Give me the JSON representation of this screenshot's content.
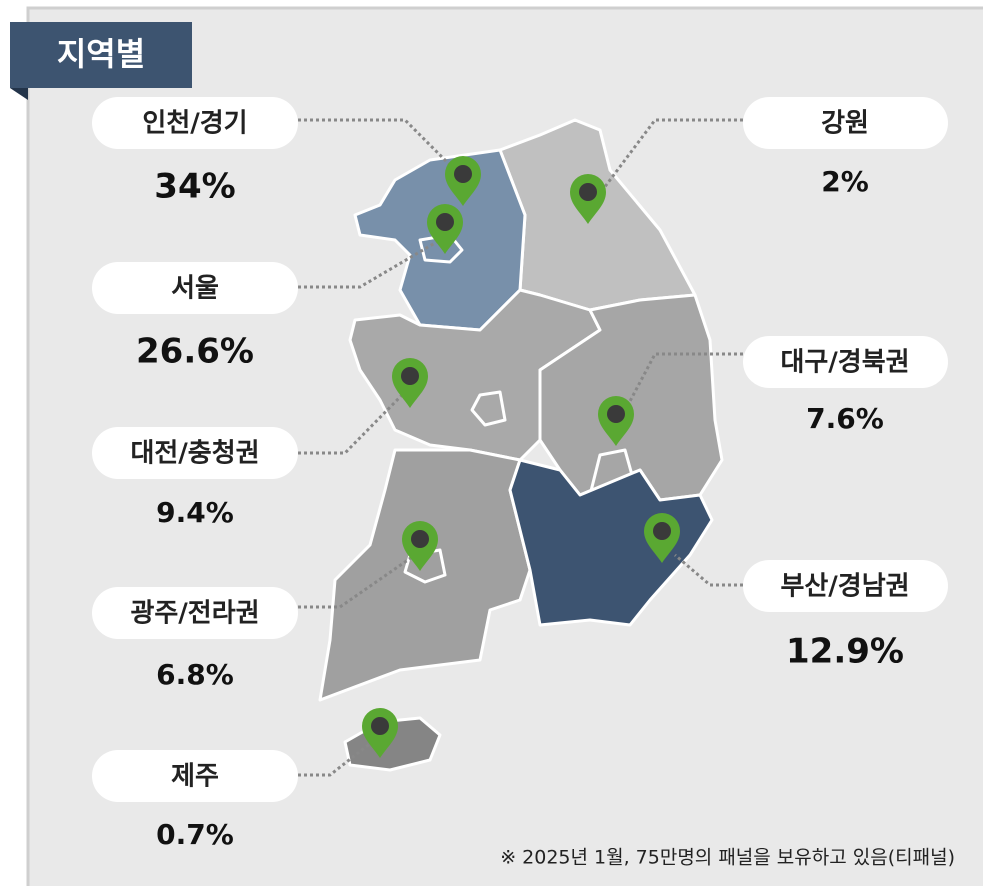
{
  "header": {
    "title": "지역별"
  },
  "regions": [
    {
      "name": "인천/경기",
      "value": "34%"
    },
    {
      "name": "서울",
      "value": "26.6%"
    },
    {
      "name": "대전/충청권",
      "value": "9.4%"
    },
    {
      "name": "광주/전라권",
      "value": "6.8%"
    },
    {
      "name": "제주",
      "value": "0.7%"
    },
    {
      "name": "강원",
      "value": "2%"
    },
    {
      "name": "대구/경북권",
      "value": "7.6%"
    },
    {
      "name": "부산/경남권",
      "value": "12.9%"
    }
  ],
  "footnote": "※ 2025년 1월, 75만명의 패널을 보유하고 있음(티패널)"
}
